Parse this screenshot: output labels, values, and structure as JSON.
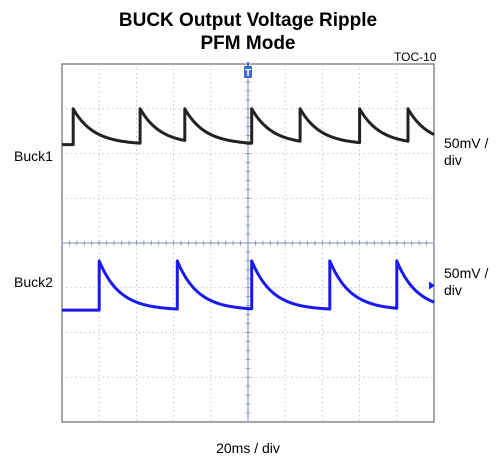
{
  "title": "BUCK Output Voltage Ripple",
  "subtitle": "PFM Mode",
  "figure_id": "TOC-10",
  "x_scale": "20ms / div",
  "trigger_marker": "T",
  "channels": [
    {
      "label": "Buck1",
      "scale": "50mV /",
      "scale_unit": "div",
      "color": "#222222"
    },
    {
      "label": "Buck2",
      "scale": "50mV /",
      "scale_unit": "div",
      "color": "#1a1aee"
    }
  ],
  "chart_data": {
    "type": "line",
    "title": "BUCK Output Voltage Ripple",
    "subtitle": "PFM Mode",
    "xlabel": "20ms / div",
    "x_divisions": 10,
    "y_divisions": 8,
    "grid": true,
    "series": [
      {
        "name": "Buck1",
        "scale": "50mV / div",
        "baseline_div": 2.2,
        "decay_div": 1.2,
        "reset_times_div": [
          0.3,
          2.1,
          3.3,
          5.1,
          6.4,
          8.0,
          9.3
        ],
        "peak_div": 3.0
      },
      {
        "name": "Buck2",
        "scale": "50mV / div",
        "baseline_div": -1.5,
        "decay_div": 1.1,
        "reset_times_div": [
          1.0,
          3.1,
          5.1,
          7.2,
          9.0
        ],
        "peak_div": -0.4
      }
    ]
  }
}
